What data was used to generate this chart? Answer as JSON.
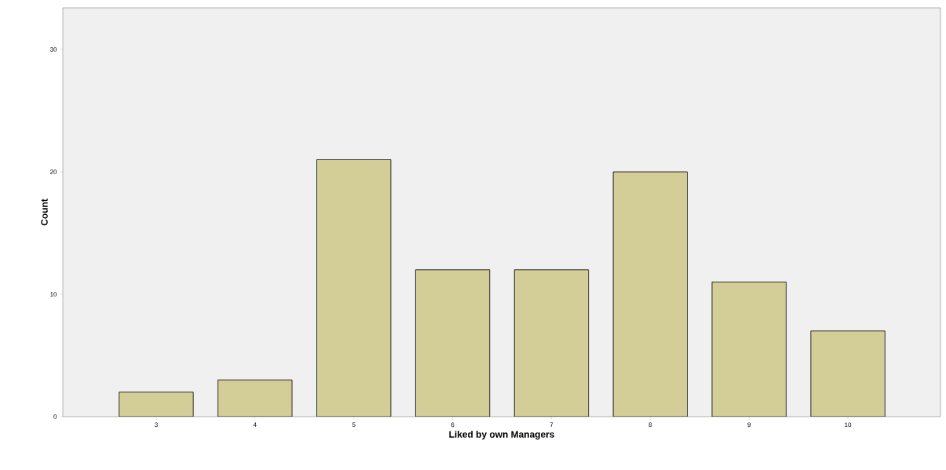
{
  "chart_data": {
    "type": "bar",
    "xlabel": "Liked by own Managers",
    "ylabel": "Count",
    "categories": [
      "3",
      "4",
      "5",
      "6",
      "7",
      "8",
      "9",
      "10"
    ],
    "values": [
      2,
      3,
      21,
      12,
      12,
      20,
      11,
      7
    ],
    "color": "#d3ce97",
    "ylim": [
      0,
      33.4
    ],
    "yticks": [
      0,
      10,
      20,
      30
    ]
  }
}
